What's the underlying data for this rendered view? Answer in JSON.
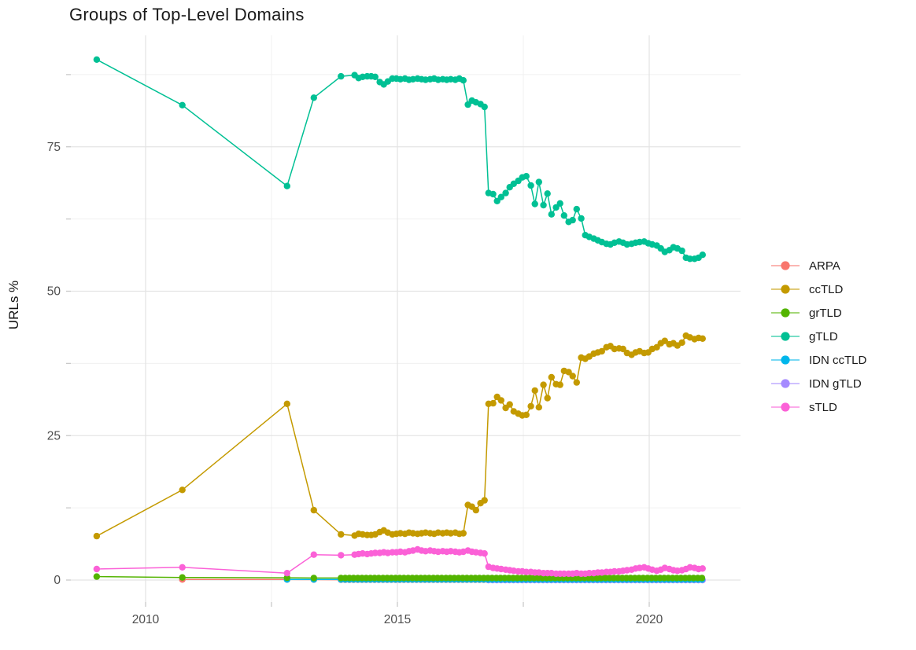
{
  "chart_data": {
    "type": "line",
    "title": "Groups of Top-Level Domains",
    "xlabel": "",
    "ylabel": "URLs %",
    "axes": {
      "x": {
        "breaks": [
          2010,
          2015,
          2020
        ],
        "minor_breaks": [
          2012.5,
          2017.5
        ],
        "range": [
          2008.5,
          2021.8
        ]
      },
      "y": {
        "breaks": [
          0,
          25,
          50,
          75
        ],
        "minor_breaks": [
          12.5,
          37.5,
          62.5,
          87.5
        ],
        "range": [
          -4,
          94
        ]
      }
    },
    "grid": true,
    "legend_position": "right",
    "colors": {
      "grid_major": "#e4e4e4",
      "grid_minor": "#f0f0f0",
      "tick": "#c9c9c9",
      "tick_label": "#4d4d4d"
    },
    "series": [
      {
        "name": "ARPA",
        "color": "#F8766D",
        "z": 0,
        "points": [
          [
            2010.73,
            0.1
          ],
          [
            2012.81,
            0.1
          ],
          [
            2013.34,
            0.08
          ]
        ],
        "flat": {
          "from": 2013.88,
          "to": 2021.06,
          "value": 0.05
        }
      },
      {
        "name": "ccTLD",
        "color": "#C49A00",
        "z": 5,
        "points": [
          [
            2009.03,
            7.6
          ],
          [
            2010.73,
            15.6
          ],
          [
            2012.81,
            30.5
          ],
          [
            2013.34,
            12.1
          ],
          [
            2013.88,
            7.9
          ],
          [
            2014.15,
            7.7
          ],
          [
            2014.23,
            8.0
          ],
          [
            2014.31,
            7.9
          ],
          [
            2014.4,
            7.8
          ],
          [
            2014.48,
            7.8
          ],
          [
            2014.56,
            7.9
          ],
          [
            2014.65,
            8.3
          ],
          [
            2014.73,
            8.6
          ],
          [
            2014.81,
            8.2
          ],
          [
            2014.9,
            7.9
          ],
          [
            2014.98,
            8.0
          ],
          [
            2015.06,
            8.1
          ],
          [
            2015.15,
            8.0
          ],
          [
            2015.23,
            8.2
          ],
          [
            2015.31,
            8.1
          ],
          [
            2015.4,
            8.0
          ],
          [
            2015.48,
            8.1
          ],
          [
            2015.56,
            8.2
          ],
          [
            2015.65,
            8.1
          ],
          [
            2015.73,
            8.0
          ],
          [
            2015.81,
            8.2
          ],
          [
            2015.9,
            8.1
          ],
          [
            2015.98,
            8.2
          ],
          [
            2016.06,
            8.1
          ],
          [
            2016.15,
            8.2
          ],
          [
            2016.23,
            8.0
          ],
          [
            2016.31,
            8.1
          ],
          [
            2016.4,
            13.0
          ],
          [
            2016.48,
            12.7
          ],
          [
            2016.56,
            12.1
          ],
          [
            2016.65,
            13.3
          ],
          [
            2016.73,
            13.8
          ],
          [
            2016.81,
            30.5
          ],
          [
            2016.9,
            30.6
          ],
          [
            2016.98,
            31.7
          ],
          [
            2017.06,
            31.1
          ],
          [
            2017.15,
            29.8
          ],
          [
            2017.23,
            30.4
          ],
          [
            2017.31,
            29.2
          ],
          [
            2017.4,
            28.8
          ],
          [
            2017.48,
            28.5
          ],
          [
            2017.56,
            28.6
          ],
          [
            2017.65,
            30.1
          ],
          [
            2017.73,
            32.8
          ],
          [
            2017.81,
            29.9
          ],
          [
            2017.9,
            33.8
          ],
          [
            2017.98,
            31.5
          ],
          [
            2018.06,
            35.1
          ],
          [
            2018.15,
            33.9
          ],
          [
            2018.23,
            33.8
          ],
          [
            2018.31,
            36.2
          ],
          [
            2018.4,
            36.0
          ],
          [
            2018.48,
            35.3
          ],
          [
            2018.56,
            34.2
          ],
          [
            2018.65,
            38.5
          ],
          [
            2018.73,
            38.3
          ],
          [
            2018.81,
            38.7
          ],
          [
            2018.9,
            39.2
          ],
          [
            2018.98,
            39.4
          ],
          [
            2019.06,
            39.6
          ],
          [
            2019.15,
            40.3
          ],
          [
            2019.23,
            40.5
          ],
          [
            2019.31,
            40.0
          ],
          [
            2019.4,
            40.1
          ],
          [
            2019.48,
            40.0
          ],
          [
            2019.56,
            39.3
          ],
          [
            2019.65,
            39.0
          ],
          [
            2019.73,
            39.4
          ],
          [
            2019.81,
            39.6
          ],
          [
            2019.9,
            39.3
          ],
          [
            2019.98,
            39.4
          ],
          [
            2020.06,
            40.0
          ],
          [
            2020.15,
            40.3
          ],
          [
            2020.23,
            41.0
          ],
          [
            2020.31,
            41.4
          ],
          [
            2020.4,
            40.8
          ],
          [
            2020.48,
            41.0
          ],
          [
            2020.56,
            40.6
          ],
          [
            2020.65,
            41.1
          ],
          [
            2020.73,
            42.3
          ],
          [
            2020.81,
            42.0
          ],
          [
            2020.9,
            41.7
          ],
          [
            2020.98,
            41.9
          ],
          [
            2021.06,
            41.8
          ]
        ]
      },
      {
        "name": "grTLD",
        "color": "#53B400",
        "z": 3,
        "points": [
          [
            2009.03,
            0.6
          ],
          [
            2010.73,
            0.45
          ],
          [
            2012.81,
            0.4
          ],
          [
            2013.34,
            0.35
          ]
        ],
        "flat": {
          "from": 2013.88,
          "to": 2021.06,
          "value": 0.35
        }
      },
      {
        "name": "gTLD",
        "color": "#00C094",
        "z": 6,
        "points": [
          [
            2009.03,
            90.1
          ],
          [
            2010.73,
            82.2
          ],
          [
            2012.81,
            68.2
          ],
          [
            2013.34,
            83.5
          ],
          [
            2013.88,
            87.2
          ],
          [
            2014.15,
            87.4
          ],
          [
            2014.23,
            86.9
          ],
          [
            2014.31,
            87.1
          ],
          [
            2014.4,
            87.2
          ],
          [
            2014.48,
            87.2
          ],
          [
            2014.56,
            87.1
          ],
          [
            2014.65,
            86.2
          ],
          [
            2014.73,
            85.8
          ],
          [
            2014.81,
            86.3
          ],
          [
            2014.9,
            86.8
          ],
          [
            2014.98,
            86.8
          ],
          [
            2015.06,
            86.7
          ],
          [
            2015.15,
            86.8
          ],
          [
            2015.23,
            86.6
          ],
          [
            2015.31,
            86.7
          ],
          [
            2015.4,
            86.8
          ],
          [
            2015.48,
            86.7
          ],
          [
            2015.56,
            86.6
          ],
          [
            2015.65,
            86.7
          ],
          [
            2015.73,
            86.8
          ],
          [
            2015.81,
            86.6
          ],
          [
            2015.9,
            86.7
          ],
          [
            2015.98,
            86.6
          ],
          [
            2016.06,
            86.7
          ],
          [
            2016.15,
            86.6
          ],
          [
            2016.23,
            86.8
          ],
          [
            2016.31,
            86.5
          ],
          [
            2016.4,
            82.3
          ],
          [
            2016.48,
            83.0
          ],
          [
            2016.56,
            82.7
          ],
          [
            2016.65,
            82.4
          ],
          [
            2016.73,
            81.9
          ],
          [
            2016.81,
            67.0
          ],
          [
            2016.9,
            66.8
          ],
          [
            2016.98,
            65.6
          ],
          [
            2017.06,
            66.3
          ],
          [
            2017.15,
            67.0
          ],
          [
            2017.23,
            68.0
          ],
          [
            2017.31,
            68.6
          ],
          [
            2017.4,
            69.1
          ],
          [
            2017.48,
            69.7
          ],
          [
            2017.56,
            69.9
          ],
          [
            2017.65,
            68.3
          ],
          [
            2017.73,
            65.1
          ],
          [
            2017.81,
            68.9
          ],
          [
            2017.9,
            64.9
          ],
          [
            2017.98,
            66.9
          ],
          [
            2018.06,
            63.3
          ],
          [
            2018.15,
            64.5
          ],
          [
            2018.23,
            65.2
          ],
          [
            2018.31,
            63.1
          ],
          [
            2018.4,
            62.0
          ],
          [
            2018.48,
            62.3
          ],
          [
            2018.56,
            64.2
          ],
          [
            2018.65,
            62.6
          ],
          [
            2018.73,
            59.7
          ],
          [
            2018.81,
            59.4
          ],
          [
            2018.9,
            59.1
          ],
          [
            2018.98,
            58.8
          ],
          [
            2019.06,
            58.5
          ],
          [
            2019.15,
            58.2
          ],
          [
            2019.23,
            58.1
          ],
          [
            2019.31,
            58.4
          ],
          [
            2019.4,
            58.6
          ],
          [
            2019.48,
            58.4
          ],
          [
            2019.56,
            58.1
          ],
          [
            2019.65,
            58.2
          ],
          [
            2019.73,
            58.4
          ],
          [
            2019.81,
            58.5
          ],
          [
            2019.9,
            58.6
          ],
          [
            2019.98,
            58.3
          ],
          [
            2020.06,
            58.1
          ],
          [
            2020.15,
            57.9
          ],
          [
            2020.23,
            57.4
          ],
          [
            2020.31,
            56.8
          ],
          [
            2020.4,
            57.1
          ],
          [
            2020.48,
            57.6
          ],
          [
            2020.56,
            57.4
          ],
          [
            2020.65,
            57.0
          ],
          [
            2020.73,
            55.8
          ],
          [
            2020.81,
            55.6
          ],
          [
            2020.9,
            55.6
          ],
          [
            2020.98,
            55.8
          ],
          [
            2021.06,
            56.3
          ]
        ]
      },
      {
        "name": "IDN ccTLD",
        "color": "#00B6EB",
        "z": 2,
        "points": [
          [
            2012.81,
            0.1
          ],
          [
            2013.34,
            0.1
          ]
        ],
        "flat": {
          "from": 2013.88,
          "to": 2021.06,
          "value": 0.1
        }
      },
      {
        "name": "IDN gTLD",
        "color": "#A58AFF",
        "z": 1,
        "points": [],
        "flat": {
          "from": 2016.81,
          "to": 2021.06,
          "value": 0.0
        }
      },
      {
        "name": "sTLD",
        "color": "#FB61D7",
        "z": 4,
        "points": [
          [
            2009.03,
            1.9
          ],
          [
            2010.73,
            2.2
          ],
          [
            2012.81,
            1.2
          ],
          [
            2013.34,
            4.4
          ],
          [
            2013.88,
            4.3
          ],
          [
            2014.15,
            4.4
          ],
          [
            2014.23,
            4.5
          ],
          [
            2014.31,
            4.6
          ],
          [
            2014.4,
            4.5
          ],
          [
            2014.48,
            4.6
          ],
          [
            2014.56,
            4.7
          ],
          [
            2014.65,
            4.7
          ],
          [
            2014.73,
            4.8
          ],
          [
            2014.81,
            4.7
          ],
          [
            2014.9,
            4.8
          ],
          [
            2014.98,
            4.8
          ],
          [
            2015.06,
            4.9
          ],
          [
            2015.15,
            4.8
          ],
          [
            2015.23,
            5.0
          ],
          [
            2015.31,
            5.1
          ],
          [
            2015.4,
            5.3
          ],
          [
            2015.48,
            5.1
          ],
          [
            2015.56,
            5.0
          ],
          [
            2015.65,
            5.1
          ],
          [
            2015.73,
            5.0
          ],
          [
            2015.81,
            4.9
          ],
          [
            2015.9,
            5.0
          ],
          [
            2015.98,
            4.9
          ],
          [
            2016.06,
            5.0
          ],
          [
            2016.15,
            4.9
          ],
          [
            2016.23,
            4.8
          ],
          [
            2016.31,
            4.9
          ],
          [
            2016.4,
            5.1
          ],
          [
            2016.48,
            4.9
          ],
          [
            2016.56,
            4.8
          ],
          [
            2016.65,
            4.7
          ],
          [
            2016.73,
            4.6
          ],
          [
            2016.81,
            2.3
          ],
          [
            2016.9,
            2.1
          ],
          [
            2016.98,
            2.0
          ],
          [
            2017.06,
            1.9
          ],
          [
            2017.15,
            1.8
          ],
          [
            2017.23,
            1.7
          ],
          [
            2017.31,
            1.6
          ],
          [
            2017.4,
            1.5
          ],
          [
            2017.48,
            1.5
          ],
          [
            2017.56,
            1.4
          ],
          [
            2017.65,
            1.4
          ],
          [
            2017.73,
            1.3
          ],
          [
            2017.81,
            1.3
          ],
          [
            2017.9,
            1.2
          ],
          [
            2017.98,
            1.2
          ],
          [
            2018.06,
            1.2
          ],
          [
            2018.15,
            1.1
          ],
          [
            2018.23,
            1.1
          ],
          [
            2018.31,
            1.1
          ],
          [
            2018.4,
            1.1
          ],
          [
            2018.48,
            1.1
          ],
          [
            2018.56,
            1.2
          ],
          [
            2018.65,
            1.1
          ],
          [
            2018.73,
            1.1
          ],
          [
            2018.81,
            1.2
          ],
          [
            2018.9,
            1.2
          ],
          [
            2018.98,
            1.3
          ],
          [
            2019.06,
            1.3
          ],
          [
            2019.15,
            1.4
          ],
          [
            2019.23,
            1.4
          ],
          [
            2019.31,
            1.5
          ],
          [
            2019.4,
            1.5
          ],
          [
            2019.48,
            1.6
          ],
          [
            2019.56,
            1.7
          ],
          [
            2019.65,
            1.8
          ],
          [
            2019.73,
            2.0
          ],
          [
            2019.81,
            2.1
          ],
          [
            2019.9,
            2.2
          ],
          [
            2019.98,
            2.0
          ],
          [
            2020.06,
            1.8
          ],
          [
            2020.15,
            1.6
          ],
          [
            2020.23,
            1.8
          ],
          [
            2020.31,
            2.1
          ],
          [
            2020.4,
            1.9
          ],
          [
            2020.48,
            1.7
          ],
          [
            2020.56,
            1.6
          ],
          [
            2020.65,
            1.7
          ],
          [
            2020.73,
            1.9
          ],
          [
            2020.81,
            2.2
          ],
          [
            2020.9,
            2.1
          ],
          [
            2020.98,
            1.9
          ],
          [
            2021.06,
            2.0
          ]
        ]
      }
    ]
  }
}
